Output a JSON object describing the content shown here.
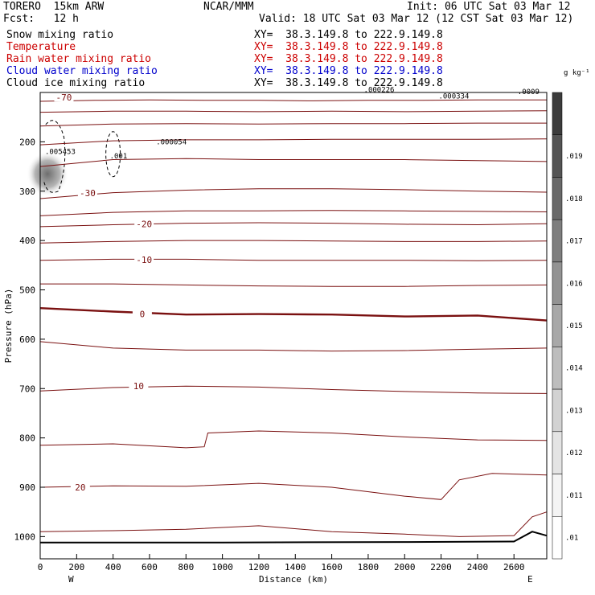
{
  "header": {
    "model": "TORERO  15km ARW",
    "org": "NCAR/MMM",
    "init": "Init: 06 UTC Sat 03 Mar 12",
    "fcst": "Fcst:   12 h",
    "valid": "Valid: 18 UTC Sat 03 Mar 12 (12 CST Sat 03 Mar 12)",
    "fields": [
      {
        "name": "Snow mixing ratio",
        "color": "#000000",
        "xy": "XY=  38.3.149.8 to 222.9.149.8"
      },
      {
        "name": "Temperature",
        "color": "#cc0000",
        "xy": "XY=  38.3.149.8 to 222.9.149.8"
      },
      {
        "name": "Rain water mixing ratio",
        "color": "#cc0000",
        "xy": "XY=  38.3.149.8 to 222.9.149.8"
      },
      {
        "name": "Cloud water mixing ratio",
        "color": "#0000cc",
        "xy": "XY=  38.3.149.8 to 222.9.149.8"
      },
      {
        "name": "Cloud ice mixing ratio",
        "color": "#000000",
        "xy": "XY=  38.3.149.8 to 222.9.149.8"
      }
    ]
  },
  "chart_data": {
    "type": "contour",
    "xlabel": "Distance (km)",
    "ylabel": "Pressure (hPa)",
    "x_ticks": [
      0,
      200,
      400,
      600,
      800,
      1000,
      1200,
      1400,
      1600,
      1800,
      2000,
      2200,
      2400,
      2600
    ],
    "xlim": [
      0,
      2780
    ],
    "y_ticks": [
      200,
      300,
      400,
      500,
      600,
      700,
      800,
      900,
      1000
    ],
    "ylim": [
      100,
      1045
    ],
    "end_labels": {
      "left": "W",
      "right": "E"
    },
    "colorbar": {
      "unit": "g kg⁻¹",
      "ticks": [
        ".01",
        ".011",
        ".012",
        ".013",
        ".014",
        ".015",
        ".016",
        ".017",
        ".018",
        ".019"
      ],
      "colors": [
        "#ffffff",
        "#f4f4f4",
        "#e4e4e4",
        "#d2d2d2",
        "#bdbdbd",
        "#a8a8a8",
        "#939393",
        "#7e7e7e",
        "#696969",
        "#545454",
        "#3c3c3c"
      ]
    },
    "temperature_contours": [
      {
        "label": "-70",
        "label_x": 130,
        "label_p": 110,
        "pts": [
          [
            0,
            118
          ],
          [
            300,
            116
          ],
          [
            600,
            115
          ],
          [
            900,
            116
          ],
          [
            1200,
            116
          ],
          [
            1500,
            117
          ],
          [
            1800,
            116
          ],
          [
            2100,
            116
          ],
          [
            2400,
            115
          ],
          [
            2780,
            115
          ]
        ]
      },
      {
        "label": "",
        "pts": [
          [
            0,
            140
          ],
          [
            400,
            138
          ],
          [
            800,
            138
          ],
          [
            1200,
            139
          ],
          [
            1600,
            138
          ],
          [
            2000,
            139
          ],
          [
            2400,
            138
          ],
          [
            2780,
            137
          ]
        ]
      },
      {
        "label": "",
        "pts": [
          [
            0,
            168
          ],
          [
            400,
            164
          ],
          [
            800,
            163
          ],
          [
            1200,
            164
          ],
          [
            1600,
            163
          ],
          [
            2000,
            163
          ],
          [
            2400,
            162
          ],
          [
            2780,
            162
          ]
        ]
      },
      {
        "label": "",
        "pts": [
          [
            0,
            206
          ],
          [
            400,
            198
          ],
          [
            800,
            196
          ],
          [
            1200,
            196
          ],
          [
            1600,
            195
          ],
          [
            2000,
            195
          ],
          [
            2400,
            195
          ],
          [
            2780,
            194
          ]
        ]
      },
      {
        "label": "",
        "pts": [
          [
            0,
            250
          ],
          [
            400,
            236
          ],
          [
            800,
            234
          ],
          [
            1200,
            236
          ],
          [
            1600,
            236
          ],
          [
            2000,
            236
          ],
          [
            2400,
            238
          ],
          [
            2780,
            240
          ]
        ]
      },
      {
        "label": "-30",
        "label_x": 260,
        "label_p": 304,
        "pts": [
          [
            0,
            315
          ],
          [
            400,
            303
          ],
          [
            800,
            298
          ],
          [
            1200,
            295
          ],
          [
            1600,
            295
          ],
          [
            2000,
            297
          ],
          [
            2400,
            300
          ],
          [
            2780,
            302
          ]
        ]
      },
      {
        "label": "",
        "pts": [
          [
            0,
            350
          ],
          [
            400,
            343
          ],
          [
            800,
            340
          ],
          [
            1200,
            340
          ],
          [
            1600,
            339
          ],
          [
            2000,
            340
          ],
          [
            2400,
            341
          ],
          [
            2780,
            342
          ]
        ]
      },
      {
        "label": "-20",
        "label_x": 570,
        "label_p": 366,
        "pts": [
          [
            0,
            372
          ],
          [
            400,
            368
          ],
          [
            800,
            365
          ],
          [
            1200,
            364
          ],
          [
            1600,
            365
          ],
          [
            2000,
            367
          ],
          [
            2400,
            368
          ],
          [
            2780,
            366
          ]
        ]
      },
      {
        "label": "",
        "pts": [
          [
            0,
            405
          ],
          [
            400,
            402
          ],
          [
            800,
            400
          ],
          [
            1200,
            400
          ],
          [
            1600,
            401
          ],
          [
            2000,
            402
          ],
          [
            2400,
            402
          ],
          [
            2780,
            401
          ]
        ]
      },
      {
        "label": "-10",
        "label_x": 570,
        "label_p": 439,
        "pts": [
          [
            0,
            440
          ],
          [
            400,
            438
          ],
          [
            800,
            438
          ],
          [
            1200,
            440
          ],
          [
            1600,
            440
          ],
          [
            2000,
            440
          ],
          [
            2400,
            441
          ],
          [
            2780,
            440
          ]
        ]
      },
      {
        "label": "",
        "pts": [
          [
            0,
            488
          ],
          [
            400,
            488
          ],
          [
            800,
            490
          ],
          [
            1200,
            492
          ],
          [
            1600,
            493
          ],
          [
            2000,
            493
          ],
          [
            2400,
            491
          ],
          [
            2780,
            490
          ]
        ]
      },
      {
        "label": "0",
        "label_x": 560,
        "label_p": 549,
        "bold": true,
        "pts": [
          [
            0,
            537
          ],
          [
            400,
            544
          ],
          [
            800,
            550
          ],
          [
            1200,
            549
          ],
          [
            1600,
            550
          ],
          [
            2000,
            554
          ],
          [
            2400,
            552
          ],
          [
            2780,
            562
          ]
        ]
      },
      {
        "label": "",
        "pts": [
          [
            0,
            605
          ],
          [
            400,
            618
          ],
          [
            800,
            622
          ],
          [
            1200,
            622
          ],
          [
            1600,
            624
          ],
          [
            2000,
            623
          ],
          [
            2400,
            620
          ],
          [
            2780,
            618
          ]
        ]
      },
      {
        "label": "10",
        "label_x": 540,
        "label_p": 695,
        "pts": [
          [
            0,
            705
          ],
          [
            400,
            698
          ],
          [
            800,
            695
          ],
          [
            1200,
            697
          ],
          [
            1600,
            702
          ],
          [
            2000,
            706
          ],
          [
            2400,
            709
          ],
          [
            2780,
            710
          ]
        ]
      },
      {
        "label": "",
        "pts": [
          [
            0,
            815
          ],
          [
            400,
            812
          ],
          [
            800,
            820
          ],
          [
            900,
            818
          ],
          [
            920,
            790
          ],
          [
            1200,
            786
          ],
          [
            1600,
            790
          ],
          [
            2000,
            798
          ],
          [
            2400,
            804
          ],
          [
            2780,
            805
          ]
        ]
      },
      {
        "label": "20",
        "label_x": 220,
        "label_p": 900,
        "pts": [
          [
            0,
            900
          ],
          [
            400,
            897
          ],
          [
            800,
            898
          ],
          [
            1200,
            892
          ],
          [
            1600,
            900
          ],
          [
            2000,
            918
          ],
          [
            2200,
            925
          ],
          [
            2300,
            885
          ],
          [
            2480,
            872
          ],
          [
            2780,
            875
          ]
        ]
      },
      {
        "label": "",
        "pts": [
          [
            0,
            990
          ],
          [
            400,
            988
          ],
          [
            800,
            985
          ],
          [
            1200,
            978
          ],
          [
            1600,
            990
          ],
          [
            2000,
            995
          ],
          [
            2300,
            1000
          ],
          [
            2600,
            998
          ],
          [
            2700,
            960
          ],
          [
            2780,
            950
          ]
        ]
      }
    ],
    "ice_max_labels": [
      {
        "text": ".005453",
        "x": 110,
        "p": 225
      },
      {
        "text": ".000054",
        "x": 720,
        "p": 205
      },
      {
        "text": ".001",
        "x": 430,
        "p": 234
      },
      {
        "text": ".000334",
        "x": 2270,
        "p": 112
      },
      {
        "text": ".000226",
        "x": 1860,
        "p": 99
      },
      {
        "text": ".0009",
        "x": 2680,
        "p": 103
      }
    ],
    "terrain_pressure_line": [
      [
        0,
        1012
      ],
      [
        1000,
        1012
      ],
      [
        2000,
        1011
      ],
      [
        2600,
        1010
      ],
      [
        2700,
        990
      ],
      [
        2780,
        998
      ]
    ]
  }
}
